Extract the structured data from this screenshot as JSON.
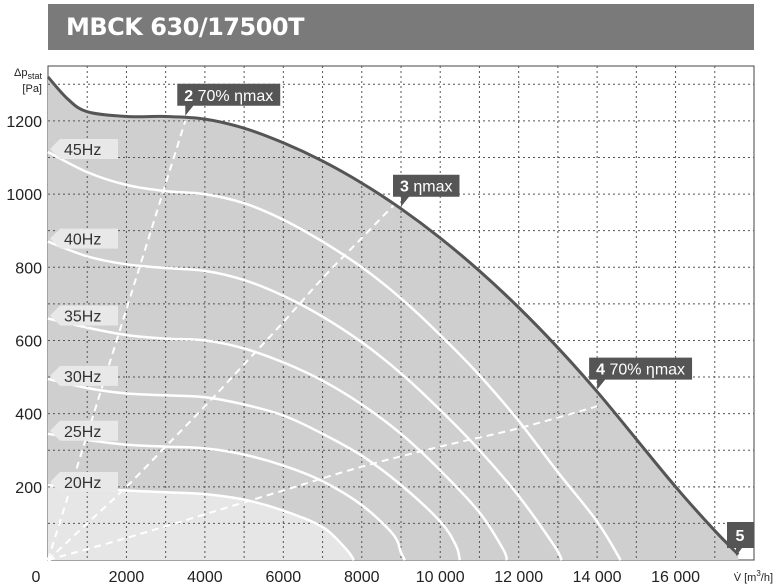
{
  "title": "MBCK 630/17500T",
  "chart_data": {
    "type": "line",
    "ylabel_line1": "Δp",
    "ylabel_sub": "stat",
    "ylabel_line2": "[Pa]",
    "xlabel_prefix": "V̇ [m",
    "xlabel_sup": "3",
    "xlabel_suffix": "/h]",
    "xlim": [
      0,
      18000
    ],
    "ylim": [
      0,
      1350
    ],
    "grid": true,
    "x_ticks": [
      {
        "value": 0,
        "label": "0"
      },
      {
        "value": 2000,
        "label": "2000"
      },
      {
        "value": 4000,
        "label": "4000"
      },
      {
        "value": 6000,
        "label": "6000"
      },
      {
        "value": 8000,
        "label": "8000"
      },
      {
        "value": 10000,
        "label": "10 000"
      },
      {
        "value": 12000,
        "label": "12 000"
      },
      {
        "value": 14000,
        "label": "14 000"
      },
      {
        "value": 16000,
        "label": "16 000"
      }
    ],
    "y_ticks": [
      {
        "value": 200,
        "label": "200"
      },
      {
        "value": 400,
        "label": "400"
      },
      {
        "value": 600,
        "label": "600"
      },
      {
        "value": 800,
        "label": "800"
      },
      {
        "value": 1000,
        "label": "1000"
      },
      {
        "value": 1200,
        "label": "1200"
      }
    ],
    "max_curve": [
      [
        0,
        1320
      ],
      [
        500,
        1260
      ],
      [
        1000,
        1225
      ],
      [
        2000,
        1212
      ],
      [
        3000,
        1212
      ],
      [
        4000,
        1205
      ],
      [
        5000,
        1180
      ],
      [
        6000,
        1140
      ],
      [
        7000,
        1090
      ],
      [
        8000,
        1030
      ],
      [
        9000,
        960
      ],
      [
        10000,
        880
      ],
      [
        11000,
        790
      ],
      [
        12000,
        690
      ],
      [
        13000,
        580
      ],
      [
        14000,
        460
      ],
      [
        15000,
        330
      ],
      [
        16000,
        200
      ],
      [
        17000,
        80
      ],
      [
        17600,
        15
      ]
    ],
    "series": [
      {
        "name": "45Hz",
        "points": [
          [
            0,
            1115
          ],
          [
            1000,
            1060
          ],
          [
            2000,
            1025
          ],
          [
            3000,
            1008
          ],
          [
            4000,
            1000
          ],
          [
            5000,
            975
          ],
          [
            6000,
            930
          ],
          [
            7000,
            870
          ],
          [
            8000,
            800
          ],
          [
            9000,
            715
          ],
          [
            10000,
            615
          ],
          [
            11000,
            505
          ],
          [
            12000,
            380
          ],
          [
            13000,
            240
          ],
          [
            14000,
            105
          ],
          [
            14600,
            0
          ]
        ]
      },
      {
        "name": "40Hz",
        "points": [
          [
            0,
            870
          ],
          [
            1000,
            830
          ],
          [
            2000,
            808
          ],
          [
            3000,
            798
          ],
          [
            4000,
            790
          ],
          [
            5000,
            765
          ],
          [
            6000,
            722
          ],
          [
            7000,
            665
          ],
          [
            8000,
            595
          ],
          [
            9000,
            510
          ],
          [
            10000,
            410
          ],
          [
            11000,
            300
          ],
          [
            12000,
            175
          ],
          [
            12900,
            40
          ],
          [
            13100,
            0
          ]
        ]
      },
      {
        "name": "35Hz",
        "points": [
          [
            0,
            660
          ],
          [
            1000,
            635
          ],
          [
            2000,
            615
          ],
          [
            3000,
            605
          ],
          [
            4000,
            600
          ],
          [
            5000,
            578
          ],
          [
            6000,
            540
          ],
          [
            7000,
            490
          ],
          [
            8000,
            425
          ],
          [
            9000,
            345
          ],
          [
            10000,
            245
          ],
          [
            11000,
            130
          ],
          [
            11600,
            30
          ],
          [
            11700,
            0
          ]
        ]
      },
      {
        "name": "30Hz",
        "points": [
          [
            0,
            495
          ],
          [
            1000,
            470
          ],
          [
            2000,
            455
          ],
          [
            3000,
            450
          ],
          [
            4000,
            445
          ],
          [
            5000,
            425
          ],
          [
            6000,
            395
          ],
          [
            7000,
            345
          ],
          [
            8000,
            285
          ],
          [
            9000,
            205
          ],
          [
            10000,
            105
          ],
          [
            10400,
            40
          ],
          [
            10500,
            0
          ]
        ]
      },
      {
        "name": "25Hz",
        "points": [
          [
            0,
            345
          ],
          [
            1000,
            328
          ],
          [
            2000,
            315
          ],
          [
            3000,
            310
          ],
          [
            4000,
            305
          ],
          [
            5000,
            288
          ],
          [
            6000,
            258
          ],
          [
            7000,
            215
          ],
          [
            8000,
            150
          ],
          [
            8800,
            70
          ],
          [
            9000,
            20
          ],
          [
            9100,
            0
          ]
        ]
      },
      {
        "name": "20Hz",
        "points": [
          [
            0,
            205
          ],
          [
            1000,
            195
          ],
          [
            2000,
            190
          ],
          [
            3000,
            185
          ],
          [
            4000,
            180
          ],
          [
            5000,
            165
          ],
          [
            6000,
            135
          ],
          [
            7000,
            90
          ],
          [
            7600,
            30
          ],
          [
            7800,
            0
          ]
        ]
      }
    ],
    "efficiency_lines": [
      {
        "label_num": "2",
        "label_text": " 70% ηmax",
        "points": [
          [
            0,
            0
          ],
          [
            3500,
            1200
          ]
        ]
      },
      {
        "label_num": "3",
        "label_text": " ηmax",
        "points": [
          [
            0,
            0
          ],
          [
            1000,
            100
          ],
          [
            2000,
            200
          ],
          [
            3000,
            310
          ],
          [
            4000,
            420
          ],
          [
            5000,
            535
          ],
          [
            6000,
            650
          ],
          [
            7000,
            770
          ],
          [
            8000,
            880
          ],
          [
            9000,
            990
          ]
        ]
      },
      {
        "label_num": "4",
        "label_text": " 70% ηmax",
        "points": [
          [
            0,
            0
          ],
          [
            2000,
            60
          ],
          [
            4000,
            125
          ],
          [
            6000,
            190
          ],
          [
            8000,
            255
          ],
          [
            10000,
            310
          ],
          [
            12000,
            360
          ],
          [
            14000,
            420
          ]
        ]
      }
    ],
    "corner_label": "5"
  }
}
